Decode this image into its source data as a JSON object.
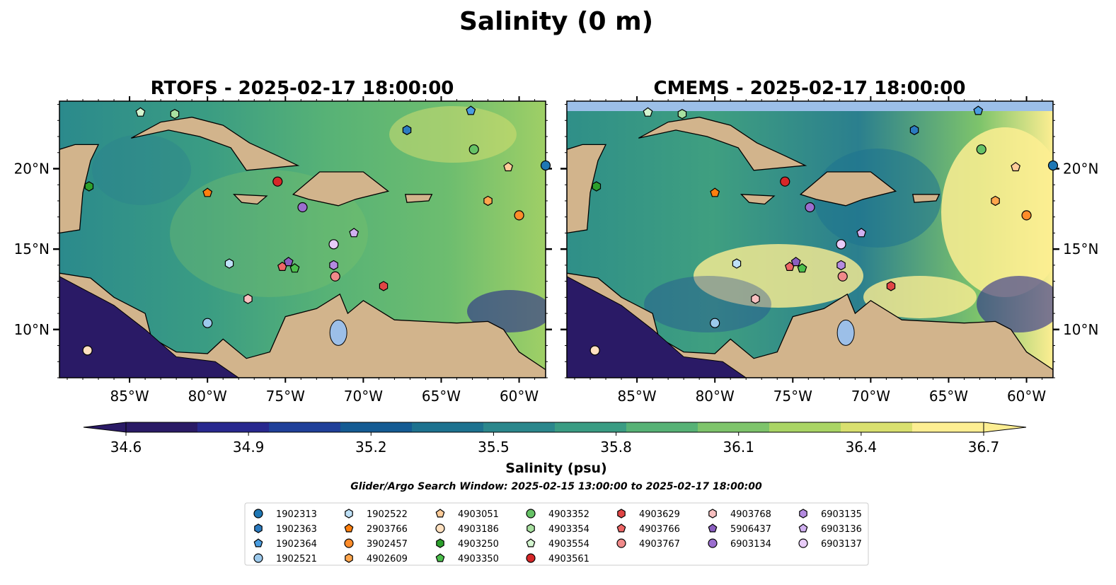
{
  "figure": {
    "suptitle": "Salinity (0 m)"
  },
  "chart_data": [
    {
      "type": "heatmap",
      "title": "RTOFS - 2025-02-17 18:00:00",
      "variable": "Salinity (psu)",
      "x_ticks": [
        "85°W",
        "80°W",
        "75°W",
        "70°W",
        "65°W",
        "60°W"
      ],
      "y_ticks": [
        "10°N",
        "15°N",
        "20°N"
      ],
      "x_values": [
        -85,
        -80,
        -75,
        -70,
        -65,
        -60
      ],
      "y_values": [
        10,
        15,
        20
      ],
      "xlim": [
        -89.5,
        -58.3
      ],
      "ylim": [
        7,
        24.2
      ],
      "land_color": "#d2b48c",
      "floats": [
        {
          "id": "4903554",
          "lon": -84.3,
          "lat": 23.5
        },
        {
          "id": "4903354",
          "lon": -82.1,
          "lat": 23.4
        },
        {
          "id": "1902364",
          "lon": -63.1,
          "lat": 23.6
        },
        {
          "id": "1902363",
          "lon": -67.2,
          "lat": 22.4
        },
        {
          "id": "4903352",
          "lon": -62.9,
          "lat": 21.2
        },
        {
          "id": "4903051",
          "lon": -60.7,
          "lat": 20.1
        },
        {
          "id": "1902313",
          "lon": -58.3,
          "lat": 20.2
        },
        {
          "id": "4903250",
          "lon": -87.6,
          "lat": 18.9
        },
        {
          "id": "2903766",
          "lon": -80.0,
          "lat": 18.5
        },
        {
          "id": "4903561",
          "lon": -75.5,
          "lat": 19.2
        },
        {
          "id": "4902609",
          "lon": -62.0,
          "lat": 18.0
        },
        {
          "id": "3902457",
          "lon": -60.0,
          "lat": 17.1
        },
        {
          "id": "6903134",
          "lon": -73.9,
          "lat": 17.6
        },
        {
          "id": "6903136",
          "lon": -70.6,
          "lat": 16.0
        },
        {
          "id": "6903137",
          "lon": -71.9,
          "lat": 15.3
        },
        {
          "id": "1902522",
          "lon": -78.6,
          "lat": 14.1
        },
        {
          "id": "4903766",
          "lon": -75.2,
          "lat": 13.9
        },
        {
          "id": "5906437",
          "lon": -74.8,
          "lat": 14.2
        },
        {
          "id": "4903350",
          "lon": -74.4,
          "lat": 13.8
        },
        {
          "id": "6903135",
          "lon": -71.9,
          "lat": 14.0
        },
        {
          "id": "4903767",
          "lon": -71.8,
          "lat": 13.3
        },
        {
          "id": "4903629",
          "lon": -68.7,
          "lat": 12.7
        },
        {
          "id": "4903768",
          "lon": -77.4,
          "lat": 11.9
        },
        {
          "id": "1902521",
          "lon": -80.0,
          "lat": 10.4
        },
        {
          "id": "4903186",
          "lon": -87.7,
          "lat": 8.7
        }
      ]
    },
    {
      "type": "heatmap",
      "title": "CMEMS - 2025-02-17 18:00:00",
      "variable": "Salinity (psu)",
      "x_ticks": [
        "85°W",
        "80°W",
        "75°W",
        "70°W",
        "65°W",
        "60°W"
      ],
      "y_ticks": [
        "10°N",
        "15°N",
        "20°N"
      ],
      "x_values": [
        -85,
        -80,
        -75,
        -70,
        -65,
        -60
      ],
      "y_values": [
        10,
        15,
        20
      ],
      "xlim": [
        -89.5,
        -58.3
      ],
      "ylim": [
        7,
        24.2
      ],
      "land_color": "#d2b48c",
      "floats": [
        {
          "id": "4903554",
          "lon": -84.3,
          "lat": 23.5
        },
        {
          "id": "4903354",
          "lon": -82.1,
          "lat": 23.4
        },
        {
          "id": "1902364",
          "lon": -63.1,
          "lat": 23.6
        },
        {
          "id": "1902363",
          "lon": -67.2,
          "lat": 22.4
        },
        {
          "id": "4903352",
          "lon": -62.9,
          "lat": 21.2
        },
        {
          "id": "4903051",
          "lon": -60.7,
          "lat": 20.1
        },
        {
          "id": "1902313",
          "lon": -58.3,
          "lat": 20.2
        },
        {
          "id": "4903250",
          "lon": -87.6,
          "lat": 18.9
        },
        {
          "id": "2903766",
          "lon": -80.0,
          "lat": 18.5
        },
        {
          "id": "4903561",
          "lon": -75.5,
          "lat": 19.2
        },
        {
          "id": "4902609",
          "lon": -62.0,
          "lat": 18.0
        },
        {
          "id": "3902457",
          "lon": -60.0,
          "lat": 17.1
        },
        {
          "id": "6903134",
          "lon": -73.9,
          "lat": 17.6
        },
        {
          "id": "6903136",
          "lon": -70.6,
          "lat": 16.0
        },
        {
          "id": "6903137",
          "lon": -71.9,
          "lat": 15.3
        },
        {
          "id": "1902522",
          "lon": -78.6,
          "lat": 14.1
        },
        {
          "id": "4903766",
          "lon": -75.2,
          "lat": 13.9
        },
        {
          "id": "5906437",
          "lon": -74.8,
          "lat": 14.2
        },
        {
          "id": "4903350",
          "lon": -74.4,
          "lat": 13.8
        },
        {
          "id": "6903135",
          "lon": -71.9,
          "lat": 14.0
        },
        {
          "id": "4903767",
          "lon": -71.8,
          "lat": 13.3
        },
        {
          "id": "4903629",
          "lon": -68.7,
          "lat": 12.7
        },
        {
          "id": "4903768",
          "lon": -77.4,
          "lat": 11.9
        },
        {
          "id": "1902521",
          "lon": -80.0,
          "lat": 10.4
        },
        {
          "id": "4903186",
          "lon": -87.7,
          "lat": 8.7
        }
      ]
    }
  ],
  "colorbar": {
    "label": "Salinity (psu)",
    "ticks": [
      "34.6",
      "34.9",
      "35.2",
      "35.5",
      "35.8",
      "36.1",
      "36.4",
      "36.7"
    ],
    "tick_values": [
      34.6,
      34.9,
      35.2,
      35.5,
      35.8,
      36.1,
      36.4,
      36.7
    ],
    "range": [
      34.6,
      36.7
    ],
    "extend": "both",
    "colormap": [
      "#2a1a66",
      "#28288e",
      "#1f3f99",
      "#145b93",
      "#1d728f",
      "#2b878c",
      "#3a9c83",
      "#57b276",
      "#7ec46b",
      "#aad565",
      "#d9e06f",
      "#fdee92"
    ]
  },
  "search_window": "Glider/Argo Search Window: 2025-02-15 13:00:00 to 2025-02-17 18:00:00",
  "legend": {
    "columns": [
      [
        {
          "id": "1902313",
          "marker": "circle",
          "color": "#1f77b4"
        },
        {
          "id": "1902363",
          "marker": "hexagon",
          "color": "#2b7bc0"
        },
        {
          "id": "1902364",
          "marker": "pentagon",
          "color": "#4a9de0"
        },
        {
          "id": "1902521",
          "marker": "circle",
          "color": "#9cc9ec"
        }
      ],
      [
        {
          "id": "1902522",
          "marker": "hexagon",
          "color": "#bfe1f7"
        },
        {
          "id": "2903766",
          "marker": "pentagon",
          "color": "#ff7f0e"
        },
        {
          "id": "3902457",
          "marker": "circle",
          "color": "#ff8c2a"
        },
        {
          "id": "4902609",
          "marker": "hexagon",
          "color": "#ffa64d"
        }
      ],
      [
        {
          "id": "4903051",
          "marker": "pentagon",
          "color": "#ffcc99"
        },
        {
          "id": "4903186",
          "marker": "circle",
          "color": "#ffe0bf"
        },
        {
          "id": "4903250",
          "marker": "hexagon",
          "color": "#2ca02c"
        },
        {
          "id": "4903350",
          "marker": "pentagon",
          "color": "#4cbf4c"
        }
      ],
      [
        {
          "id": "4903352",
          "marker": "circle",
          "color": "#66c266"
        },
        {
          "id": "4903354",
          "marker": "hexagon",
          "color": "#a8e0a0"
        },
        {
          "id": "4903554",
          "marker": "pentagon",
          "color": "#d4f5d0"
        },
        {
          "id": "4903561",
          "marker": "circle",
          "color": "#d62728"
        }
      ],
      [
        {
          "id": "4903629",
          "marker": "hexagon",
          "color": "#e04545"
        },
        {
          "id": "4903766",
          "marker": "pentagon",
          "color": "#ee6666"
        },
        {
          "id": "4903767",
          "marker": "circle",
          "color": "#f08a8a"
        }
      ],
      [
        {
          "id": "4903768",
          "marker": "hexagon",
          "color": "#f8c0c0"
        },
        {
          "id": "5906437",
          "marker": "pentagon",
          "color": "#8a5ec0"
        },
        {
          "id": "6903134",
          "marker": "circle",
          "color": "#9b6ecf"
        }
      ],
      [
        {
          "id": "6903135",
          "marker": "hexagon",
          "color": "#b48be0"
        },
        {
          "id": "6903136",
          "marker": "pentagon",
          "color": "#d0b0f0"
        },
        {
          "id": "6903137",
          "marker": "circle",
          "color": "#e8ccf8"
        }
      ]
    ]
  }
}
